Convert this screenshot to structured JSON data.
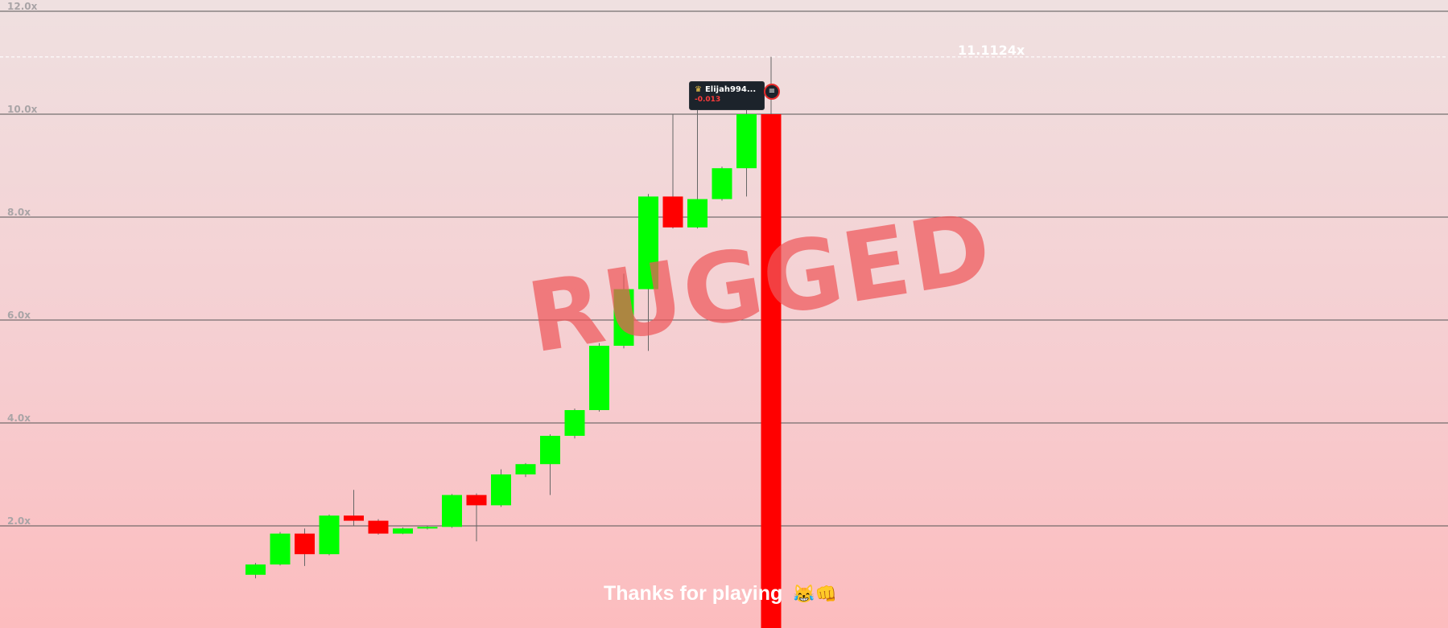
{
  "y_axis": {
    "labels": [
      "12.0x",
      "10.0x",
      "8.0x",
      "6.0x",
      "4.0x",
      "2.0x"
    ],
    "values": [
      12,
      10,
      8,
      6,
      4,
      2
    ]
  },
  "peak": {
    "label": "11.1124x",
    "value": 11.1124
  },
  "rugged_text": "RUGGED",
  "thanks_text": "Thanks for playing",
  "thanks_emoji": "😹👊",
  "player": {
    "crown_icon": "crown-icon",
    "name": "Elijah994...",
    "pnl": "-0.013"
  },
  "colors": {
    "up": "#00ff00",
    "down": "#ff0000",
    "rug_bar": "#ff0000"
  },
  "chart_data": {
    "type": "candlestick",
    "ylim": [
      0,
      12.2
    ],
    "candles": [
      {
        "open": 1.05,
        "close": 1.25,
        "high": 1.28,
        "low": 0.98
      },
      {
        "open": 1.25,
        "close": 1.85,
        "high": 1.88,
        "low": 1.23
      },
      {
        "open": 1.85,
        "close": 1.45,
        "high": 1.95,
        "low": 1.22
      },
      {
        "open": 1.45,
        "close": 2.2,
        "high": 2.22,
        "low": 1.43
      },
      {
        "open": 2.2,
        "close": 2.1,
        "high": 2.7,
        "low": 2.0
      },
      {
        "open": 2.1,
        "close": 1.85,
        "high": 2.13,
        "low": 1.83
      },
      {
        "open": 1.85,
        "close": 1.95,
        "high": 1.97,
        "low": 1.84
      },
      {
        "open": 1.95,
        "close": 1.98,
        "high": 2.0,
        "low": 1.93
      },
      {
        "open": 1.98,
        "close": 2.6,
        "high": 2.62,
        "low": 1.96
      },
      {
        "open": 2.6,
        "close": 2.4,
        "high": 2.63,
        "low": 1.7
      },
      {
        "open": 2.4,
        "close": 3.0,
        "high": 3.1,
        "low": 2.37
      },
      {
        "open": 3.0,
        "close": 3.2,
        "high": 3.22,
        "low": 2.95
      },
      {
        "open": 3.2,
        "close": 3.75,
        "high": 3.78,
        "low": 2.6
      },
      {
        "open": 3.75,
        "close": 4.25,
        "high": 4.28,
        "low": 3.7
      },
      {
        "open": 4.25,
        "close": 5.5,
        "high": 5.55,
        "low": 4.22
      },
      {
        "open": 5.5,
        "close": 6.6,
        "high": 6.9,
        "low": 5.45
      },
      {
        "open": 6.6,
        "close": 8.4,
        "high": 8.45,
        "low": 5.4
      },
      {
        "open": 8.4,
        "close": 7.8,
        "high": 10.0,
        "low": 7.78
      },
      {
        "open": 7.8,
        "close": 8.35,
        "high": 10.1,
        "low": 7.78
      },
      {
        "open": 8.35,
        "close": 8.95,
        "high": 8.98,
        "low": 8.32
      },
      {
        "open": 8.95,
        "close": 10.0,
        "high": 10.1,
        "low": 8.4
      }
    ],
    "rug": {
      "open": 10.0,
      "close": 0,
      "high": 11.1124
    }
  }
}
